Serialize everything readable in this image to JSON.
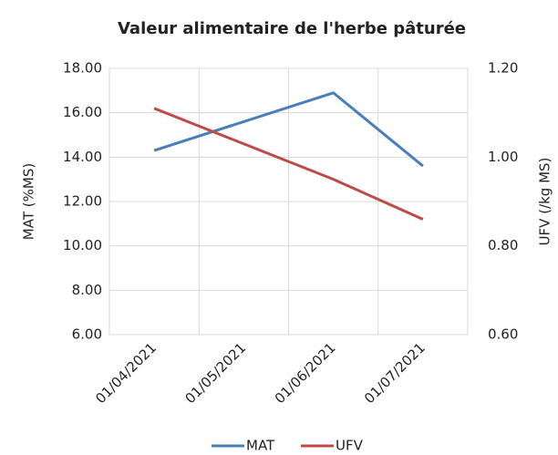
{
  "chart_data": {
    "type": "line",
    "title": "Valeur alimentaire de l'herbe pâturée",
    "y_label": "MAT (%MS)",
    "y2_label": "UFV (/kg MS)",
    "categories": [
      "01/04/2021",
      "01/05/2021",
      "01/06/2021",
      "01/07/2021"
    ],
    "series": [
      {
        "name": "MAT",
        "color": "#4a7ebb",
        "values": [
          14.3,
          15.6,
          16.9,
          13.6
        ]
      },
      {
        "name": "UFV",
        "color": "#be4b48",
        "axis": "y2",
        "values": [
          1.11,
          1.03,
          0.95,
          0.86
        ]
      }
    ],
    "ylim": [
      6,
      18
    ],
    "yticks": [
      {
        "value": 6,
        "label": "6.00"
      },
      {
        "value": 8,
        "label": "8.00"
      },
      {
        "value": 10,
        "label": "10.00"
      },
      {
        "value": 12,
        "label": "12.00"
      },
      {
        "value": 14,
        "label": "14.00"
      },
      {
        "value": 16,
        "label": "16.00"
      },
      {
        "value": 18,
        "label": "18.00"
      }
    ],
    "y2lim": [
      0.6,
      1.2
    ],
    "y2ticks": [
      {
        "value": 0.6,
        "label": "0.60"
      },
      {
        "value": 0.8,
        "label": "0.80"
      },
      {
        "value": 1.0,
        "label": "1.00"
      },
      {
        "value": 1.2,
        "label": "1.20"
      }
    ],
    "grid": true,
    "legend": "bottom"
  }
}
